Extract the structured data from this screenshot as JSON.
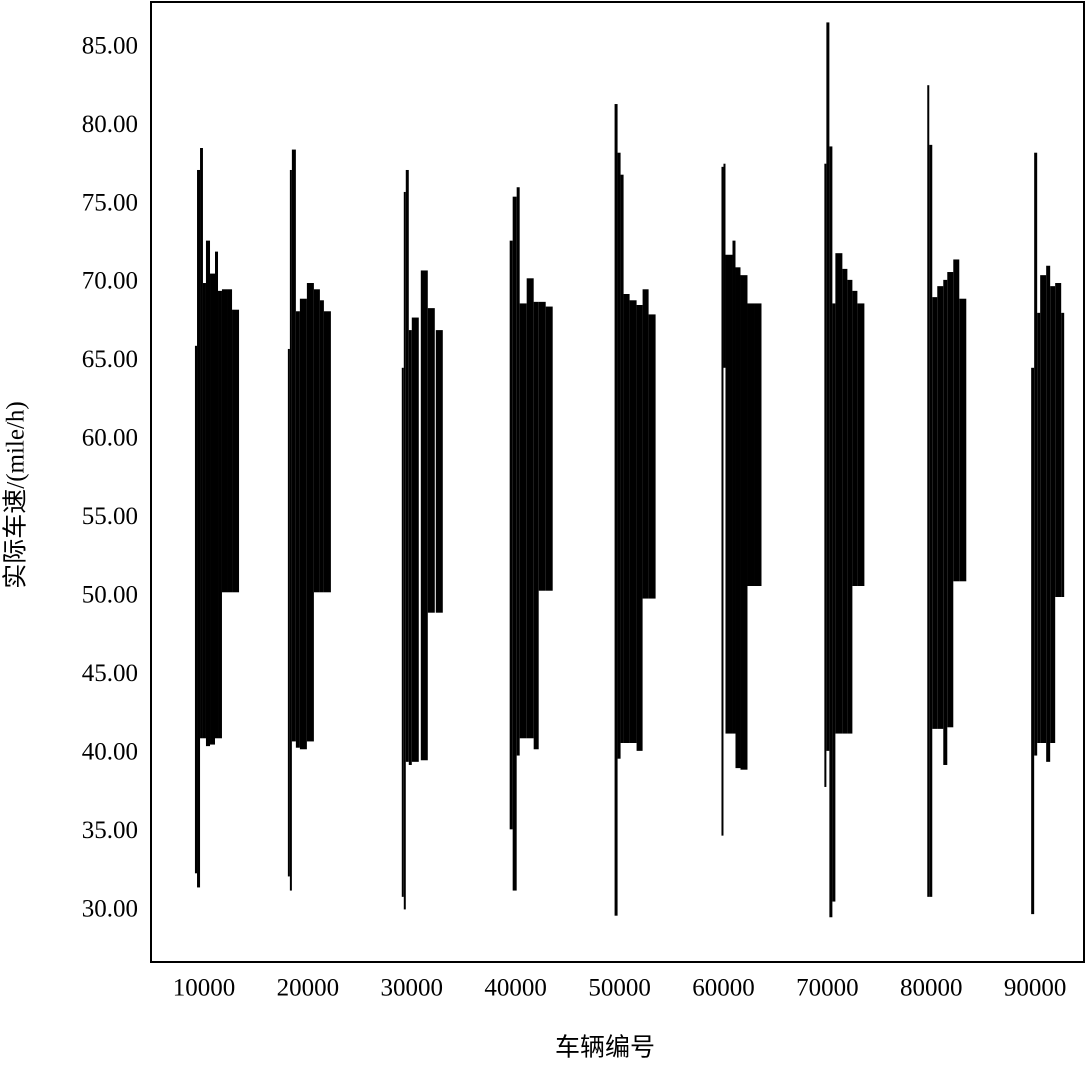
{
  "chart_data": {
    "type": "range_bar",
    "ylabel": "实际车速/(mile/h)",
    "xlabel": "车辆编号",
    "color": "#000000",
    "grid": false,
    "xlim": [
      4900,
      94700
    ],
    "ylim": [
      26.75,
      87.9
    ],
    "xticks": [
      10000,
      20000,
      30000,
      40000,
      50000,
      60000,
      70000,
      80000,
      90000
    ],
    "yticks": [
      {
        "value": 30,
        "label": "30.00"
      },
      {
        "value": 35,
        "label": "35.00"
      },
      {
        "value": 40,
        "label": "40.00"
      },
      {
        "value": 45,
        "label": "45.00"
      },
      {
        "value": 50,
        "label": "50.00"
      },
      {
        "value": 55,
        "label": "55.00"
      },
      {
        "value": 60,
        "label": "60.00"
      },
      {
        "value": 65,
        "label": "65.00"
      },
      {
        "value": 70,
        "label": "70.00"
      },
      {
        "value": 75,
        "label": "75.00"
      },
      {
        "value": 80,
        "label": "80.00"
      },
      {
        "value": 85,
        "label": "85.00"
      }
    ],
    "x": [
      9130,
      9330,
      9620,
      9900,
      10190,
      10580,
      11060,
      11350,
      11730,
      12310,
      12700,
      18074,
      18267,
      18459,
      18844,
      19230,
      19904,
      20578,
      21156,
      21541,
      29037,
      29230,
      29422,
      29711,
      30000,
      30867,
      31541,
      32311,
      39422,
      39711,
      40096,
      40385,
      41059,
      41733,
      42215,
      42889,
      49519,
      49807,
      50096,
      50385,
      50963,
      51637,
      52215,
      52793,
      59807,
      60000,
      60193,
      60867,
      61156,
      61637,
      62311,
      62985,
      69711,
      69904,
      70193,
      70482,
      70770,
      71444,
      71926,
      72407,
      72889,
      79615,
      79807,
      80096,
      80578,
      81156,
      81541,
      82119,
      82696,
      89615,
      89904,
      90193,
      90482,
      91059,
      91444,
      91926,
      92504
    ],
    "low": [
      32.4,
      31.5,
      41,
      41,
      40.5,
      40.6,
      41,
      41,
      50.3,
      50.3,
      50.3,
      32.2,
      31.3,
      40.8,
      40.4,
      40.3,
      40.8,
      50.3,
      50.3,
      50.3,
      30.9,
      30.1,
      39.5,
      39.3,
      39.5,
      39.6,
      49,
      49,
      35.2,
      31.3,
      39.9,
      41,
      41,
      40.3,
      50.4,
      50.4,
      29.7,
      39.7,
      40.7,
      40.7,
      40.7,
      40.2,
      49.9,
      49.9,
      34.8,
      64.6,
      41.3,
      41.3,
      39.1,
      39,
      50.7,
      50.7,
      37.9,
      40.2,
      29.6,
      30.6,
      41.3,
      41.3,
      41.3,
      50.7,
      50.7,
      30.9,
      30.9,
      41.6,
      41.6,
      39.3,
      41.7,
      51,
      51,
      29.8,
      39.9,
      40.7,
      40.7,
      39.5,
      40.7,
      50,
      50
    ],
    "high": [
      66,
      77.2,
      78.6,
      70,
      72.7,
      70.6,
      72,
      69.5,
      69.6,
      69.6,
      68.3,
      65.8,
      77.2,
      78.5,
      68.2,
      69,
      70,
      69.6,
      68.9,
      68.2,
      64.6,
      75.8,
      77.2,
      67,
      67.8,
      70.8,
      68.4,
      67,
      72.7,
      75.5,
      76.1,
      68.7,
      70.3,
      68.8,
      68.8,
      68.5,
      81.4,
      78.3,
      76.9,
      69.3,
      68.9,
      68.6,
      69.6,
      68,
      77.4,
      77.6,
      71.8,
      72.7,
      71,
      70.5,
      68.7,
      68.7,
      77.6,
      86.6,
      78.7,
      68.7,
      71.9,
      70.9,
      70.2,
      69.5,
      68.7,
      82.6,
      78.8,
      69.1,
      69.8,
      70.2,
      70.7,
      71.5,
      69,
      64.6,
      78.3,
      68.1,
      70.5,
      71.1,
      69.8,
      70,
      68.1
    ]
  }
}
